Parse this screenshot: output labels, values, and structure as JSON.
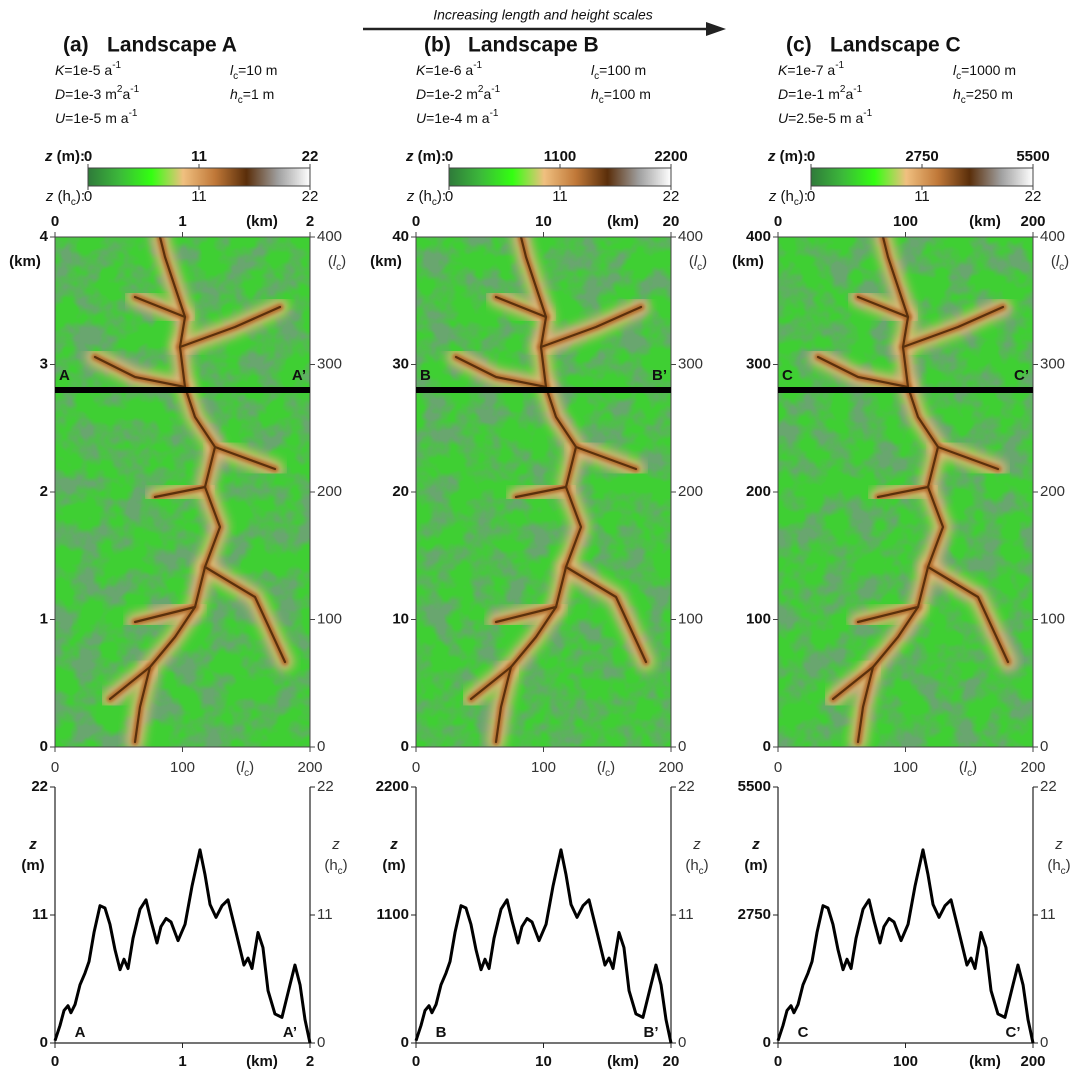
{
  "annotation": "Increasing length and height scales",
  "chart_data": [
    {
      "type": "line",
      "label": "(a)",
      "title": "Landscape A",
      "params": [
        [
          {
            "t": "K",
            "style": "italic"
          },
          {
            "t": "=1e-5 a"
          },
          {
            "t": "-1",
            "style": "sup"
          }
        ],
        [
          {
            "t": "D",
            "style": "italic"
          },
          {
            "t": "=1e-3 m"
          },
          {
            "t": "2",
            "style": "sup"
          },
          {
            "t": "a"
          },
          {
            "t": "-1",
            "style": "sup"
          }
        ],
        [
          {
            "t": "U",
            "style": "italic"
          },
          {
            "t": "=1e-5 m a"
          },
          {
            "t": "-1",
            "style": "sup"
          }
        ],
        [
          {
            "t": "l",
            "style": "italic"
          },
          {
            "t": "c",
            "style": "sub"
          },
          {
            "t": "=10 m"
          }
        ],
        [
          {
            "t": "h",
            "style": "italic"
          },
          {
            "t": "c",
            "style": "sub"
          },
          {
            "t": "=1 m"
          }
        ]
      ],
      "colorbar": {
        "label": [
          {
            "t": "z",
            "style": "italic"
          },
          {
            "t": " (m):"
          }
        ],
        "lim": [
          0,
          22
        ],
        "ticks": [
          0,
          11,
          22
        ],
        "label2": [
          {
            "t": "z",
            "style": "italic"
          },
          {
            "t": " (h"
          },
          {
            "t": "c",
            "style": "sub"
          },
          {
            "t": "):"
          }
        ],
        "lim2": [
          0,
          22
        ],
        "ticks2": [
          0,
          11,
          22
        ],
        "colors": [
          "#2f7a3a",
          "#3cb93a",
          "#33ff11",
          "#f0c080",
          "#c07838",
          "#5a2e0a",
          "#a0a0a0",
          "#ffffff"
        ]
      },
      "map": {
        "xlim": [
          0,
          2
        ],
        "xticks": [
          0,
          1,
          2
        ],
        "xlabel": "(km)",
        "ylim": [
          0,
          4
        ],
        "yticks": [
          0,
          1,
          2,
          3,
          4
        ],
        "ylabel": "(km)",
        "x2lim": [
          0,
          200
        ],
        "x2ticks": [
          0,
          100,
          200
        ],
        "x2label": [
          {
            "t": "("
          },
          {
            "t": "l",
            "style": "italic"
          },
          {
            "t": "c",
            "style": "sub"
          },
          {
            "t": ")"
          }
        ],
        "y2lim": [
          0,
          400
        ],
        "y2ticks": [
          0,
          100,
          200,
          300,
          400
        ],
        "y2label": [
          {
            "t": "("
          },
          {
            "t": "l",
            "style": "italic"
          },
          {
            "t": "c",
            "style": "sub"
          },
          {
            "t": ")"
          }
        ],
        "section_y": 2.8,
        "section_labels": [
          "A",
          "A’"
        ]
      },
      "x": [
        0,
        0.039,
        0.071,
        0.102,
        0.125,
        0.157,
        0.196,
        0.235,
        0.267,
        0.306,
        0.353,
        0.392,
        0.431,
        0.471,
        0.51,
        0.541,
        0.573,
        0.612,
        0.667,
        0.714,
        0.753,
        0.8,
        0.831,
        0.871,
        0.91,
        0.965,
        1.02,
        1.075,
        1.137,
        1.176,
        1.216,
        1.263,
        1.31,
        1.357,
        1.42,
        1.482,
        1.514,
        1.545,
        1.592,
        1.631,
        1.671,
        1.725,
        1.78,
        1.843,
        1.882,
        1.922,
        1.961,
        2
      ],
      "values": [
        0.2,
        1.5,
        2.8,
        3.2,
        2.6,
        3.3,
        5.0,
        6.0,
        7.0,
        9.5,
        11.8,
        11.6,
        10.2,
        8.0,
        6.3,
        7.2,
        6.4,
        9.0,
        11.5,
        12.3,
        10.5,
        8.6,
        10.0,
        10.7,
        10.4,
        8.8,
        10.2,
        13.5,
        16.6,
        14.5,
        11.9,
        10.8,
        11.8,
        12.3,
        9.5,
        6.7,
        7.3,
        6.4,
        9.5,
        8.2,
        4.5,
        2.5,
        2.2,
        5.0,
        6.7,
        5.0,
        2.0,
        0
      ],
      "color": "#000000",
      "xlim": [
        0,
        2
      ],
      "xticks": [
        0,
        1,
        2
      ],
      "xlabel": "(km)",
      "ylim": [
        0,
        22
      ],
      "yticks": [
        0,
        11,
        22
      ],
      "ylabel": [
        [
          {
            "t": "z",
            "style": "italic"
          }
        ],
        [
          {
            "t": "(m)"
          }
        ]
      ],
      "y2lim": [
        0,
        22
      ],
      "y2ticks": [
        0,
        11,
        22
      ],
      "y2label": [
        [
          {
            "t": "z",
            "style": "italic"
          }
        ],
        [
          {
            "t": "(h"
          },
          {
            "t": "c",
            "style": "sub"
          },
          {
            "t": ")"
          }
        ]
      ]
    },
    {
      "type": "line",
      "label": "(b)",
      "title": "Landscape B",
      "params": [
        [
          {
            "t": "K",
            "style": "italic"
          },
          {
            "t": "=1e-6 a"
          },
          {
            "t": "-1",
            "style": "sup"
          }
        ],
        [
          {
            "t": "D",
            "style": "italic"
          },
          {
            "t": "=1e-2 m"
          },
          {
            "t": "2",
            "style": "sup"
          },
          {
            "t": "a"
          },
          {
            "t": "-1",
            "style": "sup"
          }
        ],
        [
          {
            "t": "U",
            "style": "italic"
          },
          {
            "t": "=1e-4 m a"
          },
          {
            "t": "-1",
            "style": "sup"
          }
        ],
        [
          {
            "t": "l",
            "style": "italic"
          },
          {
            "t": "c",
            "style": "sub"
          },
          {
            "t": "=100 m"
          }
        ],
        [
          {
            "t": "h",
            "style": "italic"
          },
          {
            "t": "c",
            "style": "sub"
          },
          {
            "t": "=100 m"
          }
        ]
      ],
      "colorbar": {
        "label": [
          {
            "t": "z",
            "style": "italic"
          },
          {
            "t": " (m):"
          }
        ],
        "lim": [
          0,
          2200
        ],
        "ticks": [
          0,
          1100,
          2200
        ],
        "label2": [
          {
            "t": "z",
            "style": "italic"
          },
          {
            "t": " (h"
          },
          {
            "t": "c",
            "style": "sub"
          },
          {
            "t": "):"
          }
        ],
        "lim2": [
          0,
          22
        ],
        "ticks2": [
          0,
          11,
          22
        ],
        "colors": [
          "#2f7a3a",
          "#3cb93a",
          "#33ff11",
          "#f0c080",
          "#c07838",
          "#5a2e0a",
          "#a0a0a0",
          "#ffffff"
        ]
      },
      "map": {
        "xlim": [
          0,
          20
        ],
        "xticks": [
          0,
          10,
          20
        ],
        "xlabel": "(km)",
        "ylim": [
          0,
          40
        ],
        "yticks": [
          0,
          10,
          20,
          30,
          40
        ],
        "ylabel": "(km)",
        "x2lim": [
          0,
          200
        ],
        "x2ticks": [
          0,
          100,
          200
        ],
        "x2label": [
          {
            "t": "("
          },
          {
            "t": "l",
            "style": "italic"
          },
          {
            "t": "c",
            "style": "sub"
          },
          {
            "t": ")"
          }
        ],
        "y2lim": [
          0,
          400
        ],
        "y2ticks": [
          0,
          100,
          200,
          300,
          400
        ],
        "y2label": [
          {
            "t": "("
          },
          {
            "t": "l",
            "style": "italic"
          },
          {
            "t": "c",
            "style": "sub"
          },
          {
            "t": ")"
          }
        ],
        "section_y": 28,
        "section_labels": [
          "B",
          "B’"
        ]
      },
      "x": [
        0,
        0.39,
        0.71,
        1.02,
        1.25,
        1.57,
        1.96,
        2.35,
        2.67,
        3.06,
        3.53,
        3.92,
        4.31,
        4.71,
        5.1,
        5.41,
        5.73,
        6.12,
        6.67,
        7.14,
        7.53,
        8,
        8.31,
        8.71,
        9.1,
        9.65,
        10.2,
        10.75,
        11.37,
        11.76,
        12.16,
        12.63,
        13.1,
        13.57,
        14.2,
        14.82,
        15.14,
        15.45,
        15.92,
        16.31,
        16.71,
        17.25,
        17.8,
        18.43,
        18.82,
        19.22,
        19.61,
        20
      ],
      "values": [
        20,
        150,
        280,
        320,
        260,
        330,
        500,
        600,
        700,
        950,
        1180,
        1160,
        1020,
        800,
        630,
        720,
        640,
        900,
        1150,
        1230,
        1050,
        860,
        1000,
        1070,
        1040,
        880,
        1020,
        1350,
        1660,
        1450,
        1190,
        1080,
        1180,
        1230,
        950,
        670,
        730,
        640,
        950,
        820,
        450,
        250,
        220,
        500,
        670,
        500,
        200,
        0
      ],
      "color": "#000000",
      "xlim": [
        0,
        20
      ],
      "xticks": [
        0,
        10,
        20
      ],
      "xlabel": "(km)",
      "ylim": [
        0,
        2200
      ],
      "yticks": [
        0,
        1100,
        2200
      ],
      "ylabel": [
        [
          {
            "t": "z",
            "style": "italic"
          }
        ],
        [
          {
            "t": "(m)"
          }
        ]
      ],
      "y2lim": [
        0,
        22
      ],
      "y2ticks": [
        0,
        11,
        22
      ],
      "y2label": [
        [
          {
            "t": "z",
            "style": "italic"
          }
        ],
        [
          {
            "t": "(h"
          },
          {
            "t": "c",
            "style": "sub"
          },
          {
            "t": ")"
          }
        ]
      ]
    },
    {
      "type": "line",
      "label": "(c)",
      "title": "Landscape C",
      "params": [
        [
          {
            "t": "K",
            "style": "italic"
          },
          {
            "t": "=1e-7 a"
          },
          {
            "t": "-1",
            "style": "sup"
          }
        ],
        [
          {
            "t": "D",
            "style": "italic"
          },
          {
            "t": "=1e-1 m"
          },
          {
            "t": "2",
            "style": "sup"
          },
          {
            "t": "a"
          },
          {
            "t": "-1",
            "style": "sup"
          }
        ],
        [
          {
            "t": "U",
            "style": "italic"
          },
          {
            "t": "=2.5e-5 m a"
          },
          {
            "t": "-1",
            "style": "sup"
          }
        ],
        [
          {
            "t": "l",
            "style": "italic"
          },
          {
            "t": "c",
            "style": "sub"
          },
          {
            "t": "=1000 m"
          }
        ],
        [
          {
            "t": "h",
            "style": "italic"
          },
          {
            "t": "c",
            "style": "sub"
          },
          {
            "t": "=250 m"
          }
        ]
      ],
      "colorbar": {
        "label": [
          {
            "t": "z",
            "style": "italic"
          },
          {
            "t": " (m):"
          }
        ],
        "lim": [
          0,
          5500
        ],
        "ticks": [
          0,
          2750,
          5500
        ],
        "label2": [
          {
            "t": "z",
            "style": "italic"
          },
          {
            "t": " (h"
          },
          {
            "t": "c",
            "style": "sub"
          },
          {
            "t": "):"
          }
        ],
        "lim2": [
          0,
          22
        ],
        "ticks2": [
          0,
          11,
          22
        ],
        "colors": [
          "#2f7a3a",
          "#3cb93a",
          "#33ff11",
          "#f0c080",
          "#c07838",
          "#5a2e0a",
          "#a0a0a0",
          "#ffffff"
        ]
      },
      "map": {
        "xlim": [
          0,
          200
        ],
        "xticks": [
          0,
          100,
          200
        ],
        "xlabel": "(km)",
        "ylim": [
          0,
          400
        ],
        "yticks": [
          0,
          100,
          200,
          300,
          400
        ],
        "ylabel": "(km)",
        "x2lim": [
          0,
          200
        ],
        "x2ticks": [
          0,
          100,
          200
        ],
        "x2label": [
          {
            "t": "("
          },
          {
            "t": "l",
            "style": "italic"
          },
          {
            "t": "c",
            "style": "sub"
          },
          {
            "t": ")"
          }
        ],
        "y2lim": [
          0,
          400
        ],
        "y2ticks": [
          0,
          100,
          200,
          300,
          400
        ],
        "y2label": [
          {
            "t": "("
          },
          {
            "t": "l",
            "style": "italic"
          },
          {
            "t": "c",
            "style": "sub"
          },
          {
            "t": ")"
          }
        ],
        "section_y": 280,
        "section_labels": [
          "C",
          "C’"
        ]
      },
      "x": [
        0,
        3.9,
        7.1,
        10.2,
        12.5,
        15.7,
        19.6,
        23.5,
        26.7,
        30.6,
        35.3,
        39.2,
        43.1,
        47.1,
        51,
        54.1,
        57.3,
        61.2,
        66.7,
        71.4,
        75.3,
        80,
        83.1,
        87.1,
        91,
        96.5,
        102,
        107.5,
        113.7,
        117.6,
        121.6,
        126.3,
        131,
        135.7,
        142,
        148.2,
        151.4,
        154.5,
        159.2,
        163.1,
        167.1,
        172.5,
        178,
        184.3,
        188.2,
        192.2,
        196.1,
        200
      ],
      "values": [
        50,
        375,
        700,
        800,
        650,
        825,
        1250,
        1500,
        1750,
        2375,
        2950,
        2900,
        2550,
        2000,
        1575,
        1800,
        1600,
        2250,
        2875,
        3075,
        2625,
        2150,
        2500,
        2675,
        2600,
        2200,
        2550,
        3375,
        4150,
        3625,
        2975,
        2700,
        2950,
        3075,
        2375,
        1675,
        1825,
        1600,
        2375,
        2050,
        1125,
        625,
        550,
        1250,
        1675,
        1250,
        500,
        0
      ],
      "color": "#000000",
      "xlim": [
        0,
        200
      ],
      "xticks": [
        0,
        100,
        200
      ],
      "xlabel": "(km)",
      "ylim": [
        0,
        5500
      ],
      "yticks": [
        0,
        2750,
        5500
      ],
      "ylabel": [
        [
          {
            "t": "z",
            "style": "italic"
          }
        ],
        [
          {
            "t": "(m)"
          }
        ]
      ],
      "y2lim": [
        0,
        22
      ],
      "y2ticks": [
        0,
        11,
        22
      ],
      "y2label": [
        [
          {
            "t": "z",
            "style": "italic"
          }
        ],
        [
          {
            "t": "(h"
          },
          {
            "t": "c",
            "style": "sub"
          },
          {
            "t": ")"
          }
        ]
      ]
    }
  ]
}
